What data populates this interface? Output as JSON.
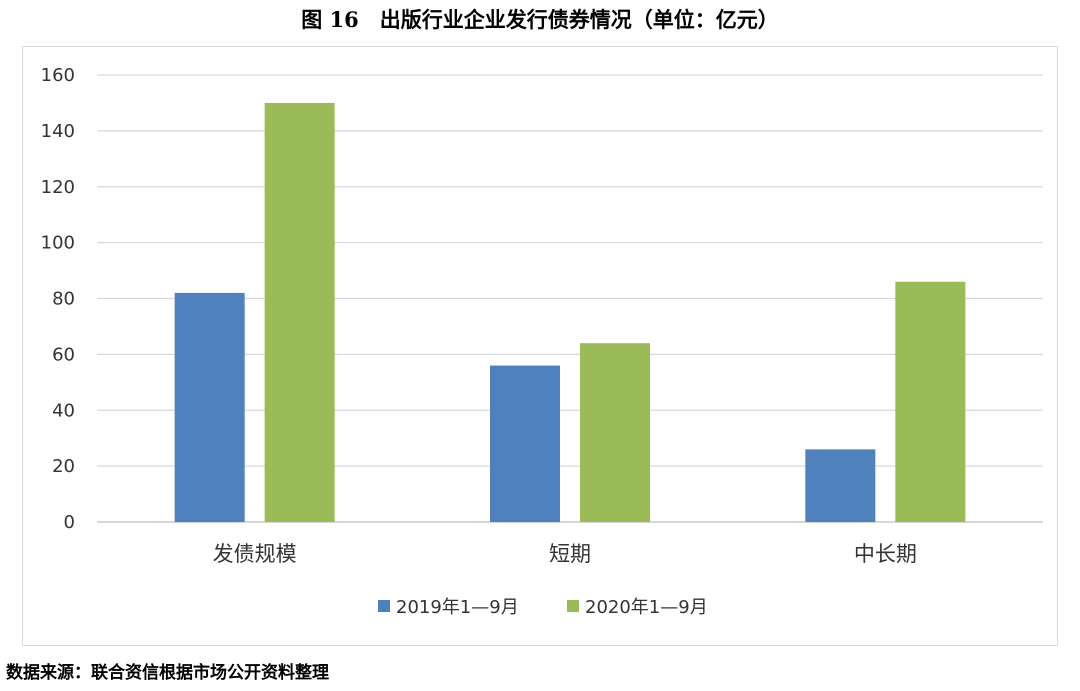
{
  "title": "图 16　出版行业企业发行债券情况（单位：亿元）",
  "source": "数据来源：联合资信根据市场公开资料整理",
  "colors": {
    "s2019": "#4f81bd",
    "s2020": "#9bbb59",
    "grid": "#d9d9d9",
    "axis": "#bfbfbf"
  },
  "chart_data": {
    "type": "bar",
    "categories": [
      "发债规模",
      "短期",
      "中长期"
    ],
    "series": [
      {
        "name": "2019年1—9月",
        "values": [
          82,
          56,
          26
        ]
      },
      {
        "name": "2020年1—9月",
        "values": [
          150,
          64,
          86
        ]
      }
    ],
    "ylim": [
      0,
      160
    ],
    "yticks": [
      0,
      20,
      40,
      60,
      80,
      100,
      120,
      140,
      160
    ],
    "grid": true,
    "legend": "bottom"
  }
}
